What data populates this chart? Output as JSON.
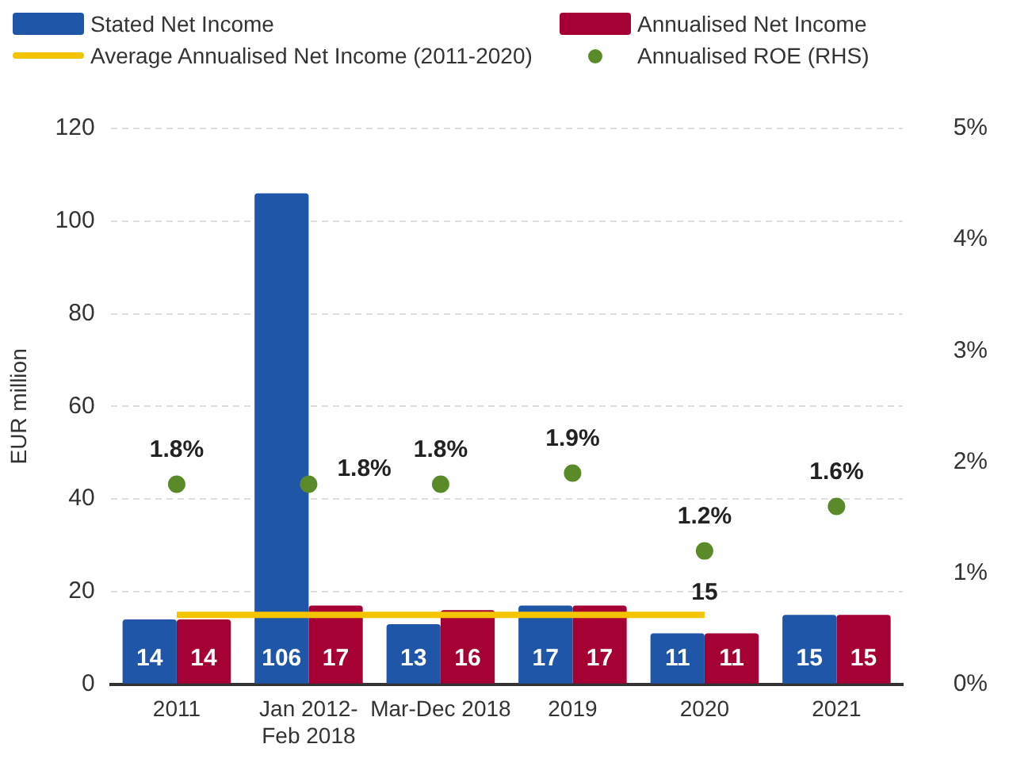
{
  "chart_data": {
    "type": "bar",
    "ylabel": "EUR million",
    "categories": [
      "2011",
      "Jan 2012-Feb 2018",
      "Mar-Dec 2018",
      "2019",
      "2020",
      "2021"
    ],
    "series": [
      {
        "name": "Stated Net Income",
        "color": "#1f56a8",
        "values": [
          14,
          106,
          13,
          17,
          11,
          15
        ],
        "value_labels": [
          "14",
          "106",
          "13",
          "17",
          "11",
          "15"
        ]
      },
      {
        "name": "Annualised Net Income",
        "color": "#a50034",
        "values": [
          14,
          17,
          16,
          17,
          11,
          15
        ],
        "value_labels": [
          "14",
          "17",
          "16",
          "17",
          "11",
          "15"
        ]
      },
      {
        "name": "Average Annualised Net Income (2011-2020)",
        "type": "line",
        "marker": "none",
        "color": "#f5c400",
        "values": [
          15,
          15,
          15,
          15,
          15,
          null
        ],
        "value_labels": [
          null,
          null,
          null,
          null,
          "15",
          null
        ]
      },
      {
        "name": "Annualised ROE (RHS)",
        "type": "scatter",
        "axis": "y2",
        "color": "#5a8a2a",
        "values": [
          1.8,
          1.8,
          1.8,
          1.9,
          1.2,
          1.6
        ],
        "value_labels": [
          "1.8%",
          "1.8%",
          "1.8%",
          "1.9%",
          "1.2%",
          "1.6%"
        ]
      }
    ],
    "ylim": [
      0,
      120
    ],
    "yticks": [
      0,
      20,
      40,
      60,
      80,
      100,
      120
    ],
    "y2lim": [
      0,
      5
    ],
    "y2ticks": [
      {
        "value": 0,
        "label": "0%"
      },
      {
        "value": 1,
        "label": "1%"
      },
      {
        "value": 2,
        "label": "2%"
      },
      {
        "value": 3,
        "label": "3%"
      },
      {
        "value": 4,
        "label": "4%"
      },
      {
        "value": 5,
        "label": "5%"
      }
    ],
    "grid": "y",
    "legend": "top",
    "marker": "circle",
    "line_style": "solid"
  }
}
